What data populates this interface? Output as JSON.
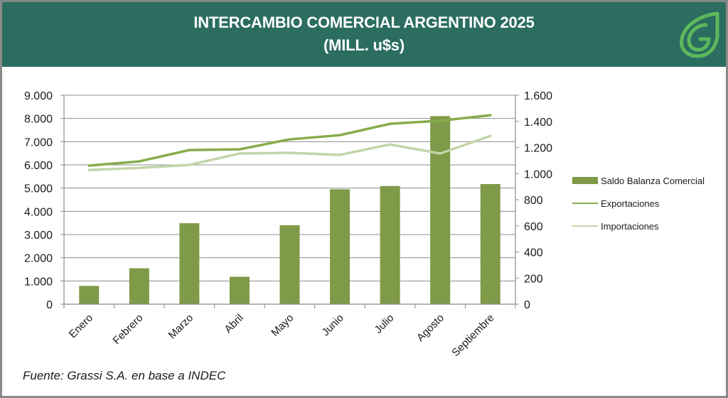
{
  "header": {
    "title_line1": "INTERCAMBIO COMERCIAL ARGENTINO 2025",
    "title_line2": "(MILL. u$s)",
    "logo_icon": "grassi-leaf-logo-icon",
    "background_color": "#2b6d60",
    "logo_color": "#5cb85c"
  },
  "source": "Fuente: Grassi S.A.  en base a INDEC",
  "chart_data": {
    "type": "bar",
    "title": "INTERCAMBIO COMERCIAL ARGENTINO 2025 (MILL. u$s)",
    "xlabel": "",
    "ylabel": "",
    "categories": [
      "Enero",
      "Febrero",
      "Marzo",
      "Abril",
      "Mayo",
      "Junio",
      "Julio",
      "Agosto",
      "Septiembre"
    ],
    "left_axis": {
      "ylim": [
        0,
        9000
      ],
      "ticks": [
        0,
        1000,
        2000,
        3000,
        4000,
        5000,
        6000,
        7000,
        8000,
        9000
      ],
      "tick_labels": [
        "0",
        "1.000",
        "2.000",
        "3.000",
        "4.000",
        "5.000",
        "6.000",
        "7.000",
        "8.000",
        "9.000"
      ]
    },
    "right_axis": {
      "ylim": [
        0,
        1600
      ],
      "ticks": [
        0,
        200,
        400,
        600,
        800,
        1000,
        1200,
        1400,
        1600
      ],
      "tick_labels": [
        "0",
        "200",
        "400",
        "600",
        "800",
        "1.000",
        "1.200",
        "1.400",
        "1.600"
      ]
    },
    "grid": true,
    "legend_position": "right",
    "series": [
      {
        "name": "Saldo Balanza Comercial",
        "type": "bar",
        "axis": "right",
        "color": "#7f9a48",
        "values": [
          140,
          275,
          620,
          210,
          605,
          880,
          905,
          1440,
          920
        ]
      },
      {
        "name": "Exportaciones",
        "type": "line",
        "axis": "left",
        "color": "#86ad4a",
        "values": [
          5970,
          6150,
          6640,
          6670,
          7100,
          7280,
          7770,
          7900,
          8140
        ]
      },
      {
        "name": "Importaciones",
        "type": "line",
        "axis": "left",
        "color": "#c3d5a8",
        "values": [
          5780,
          5870,
          6000,
          6490,
          6520,
          6430,
          6880,
          6490,
          7250
        ]
      }
    ]
  }
}
